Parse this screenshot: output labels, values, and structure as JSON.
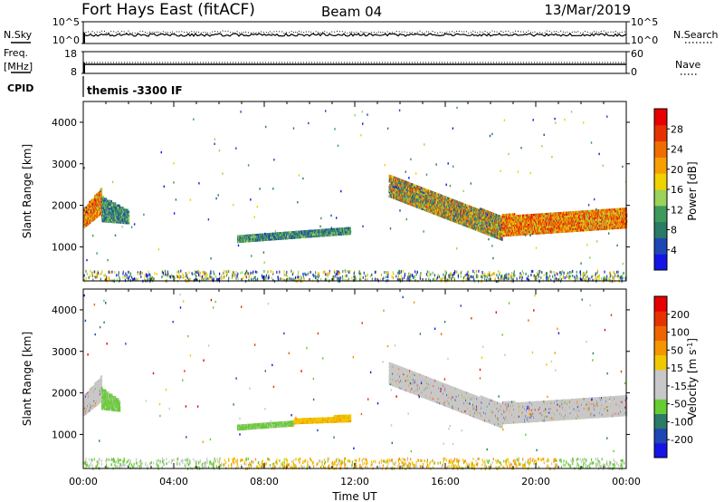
{
  "header": {
    "station": "Fort Hays East (fitACF)",
    "beam": "Beam 04",
    "date": "13/Mar/2019"
  },
  "top_panels": {
    "nsky_label": "N.Sky",
    "nsky_ticks": [
      "10^5",
      "10^0"
    ],
    "nsearch_label": "N.Search",
    "nsearch_ticks": [
      "10^5",
      "10^0"
    ],
    "freq_label_1": "Freq.",
    "freq_label_2": "[MHz]",
    "freq_ticks": [
      "18",
      "8"
    ],
    "nave_label": "Nave",
    "nave_ticks": [
      "60",
      "0"
    ],
    "cpid_label": "CPID",
    "cpid_text": "themis -3300 IF"
  },
  "colors": {
    "power_scale": [
      "#1414e6",
      "#1e46b4",
      "#2a7a66",
      "#3d9a5a",
      "#9ad25a",
      "#f0d200",
      "#f5a000",
      "#f06e00",
      "#e63200",
      "#e60000"
    ],
    "velocity_scale": [
      "#1414e6",
      "#1e46b4",
      "#2a7a66",
      "#66cc33",
      "#c8c8c8",
      "#c8c8c8",
      "#f0c800",
      "#f59600",
      "#f06400",
      "#e63200",
      "#e60000"
    ]
  },
  "chart_data": [
    {
      "type": "heatmap",
      "title": "Power",
      "xlabel": "",
      "ylabel": "Slant Range [km]",
      "xlim": [
        0,
        24
      ],
      "ylim": [
        180,
        4500
      ],
      "x_tick_labels": [
        "00:00",
        "04:00",
        "08:00",
        "12:00",
        "16:00",
        "20:00",
        "00:00"
      ],
      "y_tick_labels": [
        "1000",
        "2000",
        "3000",
        "4000"
      ],
      "y_tick_values": [
        1000,
        2000,
        3000,
        4000
      ],
      "colorbar_label": "Power [dB]",
      "colorbar_ticks": [
        "4",
        "8",
        "12",
        "16",
        "20",
        "24",
        "28"
      ],
      "colorbar_range": [
        0,
        30
      ],
      "echo_regions": [
        {
          "t0": 0.0,
          "t1": 0.8,
          "r_low0": 1450,
          "r_high0": 1900,
          "r_low1": 1800,
          "r_high1": 2400,
          "level": "high"
        },
        {
          "t0": 0.8,
          "t1": 2.0,
          "r_low0": 1600,
          "r_high0": 2200,
          "r_low1": 1550,
          "r_high1": 1850,
          "level": "mid"
        },
        {
          "t0": 6.8,
          "t1": 11.8,
          "r_low0": 1100,
          "r_high0": 1250,
          "r_low1": 1300,
          "r_high1": 1450,
          "level": "mid"
        },
        {
          "t0": 13.5,
          "t1": 18.5,
          "r_low0": 2200,
          "r_high0": 2700,
          "r_low1": 1150,
          "r_high1": 1700,
          "level": "mixed"
        },
        {
          "t0": 18.5,
          "t1": 24.0,
          "r_low0": 1250,
          "r_high0": 1750,
          "r_low1": 1450,
          "r_high1": 1900,
          "level": "high"
        }
      ]
    },
    {
      "type": "heatmap",
      "title": "Velocity",
      "xlabel": "Time UT",
      "ylabel": "Slant Range [km]",
      "xlim": [
        0,
        24
      ],
      "ylim": [
        180,
        4500
      ],
      "x_tick_labels": [
        "00:00",
        "04:00",
        "08:00",
        "12:00",
        "16:00",
        "20:00",
        "00:00"
      ],
      "y_tick_labels": [
        "1000",
        "2000",
        "3000",
        "4000"
      ],
      "y_tick_values": [
        1000,
        2000,
        3000,
        4000
      ],
      "colorbar_label": "Velocity [m s^-1]",
      "colorbar_ticks": [
        "200",
        "100",
        "50",
        "15",
        "-15",
        "-50",
        "-100",
        "-200"
      ],
      "echo_regions": [
        {
          "t0": 0.0,
          "t1": 0.8,
          "r_low0": 1450,
          "r_high0": 1900,
          "r_low1": 1800,
          "r_high1": 2400,
          "level": "ground"
        },
        {
          "t0": 0.8,
          "t1": 1.6,
          "r_low0": 1600,
          "r_high0": 2100,
          "r_low1": 1550,
          "r_high1": 1800,
          "level": "green"
        },
        {
          "t0": 6.8,
          "t1": 9.3,
          "r_low0": 1100,
          "r_high0": 1220,
          "r_low1": 1200,
          "r_high1": 1300,
          "level": "green"
        },
        {
          "t0": 9.3,
          "t1": 11.8,
          "r_low0": 1250,
          "r_high0": 1350,
          "r_low1": 1300,
          "r_high1": 1450,
          "level": "orange"
        },
        {
          "t0": 13.5,
          "t1": 18.5,
          "r_low0": 2200,
          "r_high0": 2700,
          "r_low1": 1150,
          "r_high1": 1700,
          "level": "ground"
        },
        {
          "t0": 18.5,
          "t1": 24.0,
          "r_low0": 1250,
          "r_high0": 1750,
          "r_low1": 1450,
          "r_high1": 1900,
          "level": "ground"
        }
      ]
    }
  ]
}
